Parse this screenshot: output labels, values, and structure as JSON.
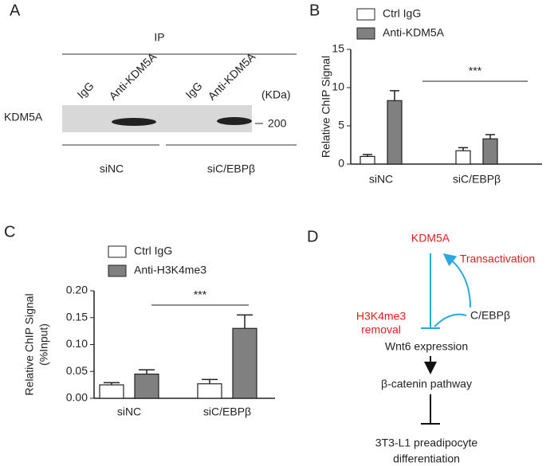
{
  "panel_labels": [
    "A",
    "B",
    "C",
    "D"
  ],
  "blot": {
    "header": "IP",
    "lanes": [
      "IgG",
      "Anti-KDM5A",
      "IgG",
      "Anti-KDM5A"
    ],
    "unit": "(KDa)",
    "protein": "KDM5A",
    "marker": "200",
    "groups": [
      "siNC",
      "siC/EBPβ"
    ]
  },
  "chart_data": [
    {
      "type": "bar",
      "y_label": "Relative ChIP Signal",
      "categories": [
        "siNC",
        "siC/EBPβ"
      ],
      "series": [
        {
          "name": "Ctrl IgG",
          "color": "#ffffff",
          "values": [
            1.0,
            1.75
          ],
          "errors": [
            0.25,
            0.4
          ]
        },
        {
          "name": "Anti-KDM5A",
          "color": "#808080",
          "values": [
            8.3,
            3.3
          ],
          "errors": [
            1.3,
            0.55
          ]
        }
      ],
      "ylim": [
        0,
        15
      ],
      "yticks": [
        0,
        5,
        10,
        15
      ],
      "annotation": "***"
    },
    {
      "type": "bar",
      "y_label": [
        "Relative ChIP Signal",
        "(%Input)"
      ],
      "categories": [
        "siNC",
        "siC/EBPβ"
      ],
      "series": [
        {
          "name": "Ctrl IgG",
          "color": "#ffffff",
          "values": [
            0.025,
            0.027
          ],
          "errors": [
            0.004,
            0.008
          ]
        },
        {
          "name": "Anti-H3K4me3",
          "color": "#808080",
          "values": [
            0.045,
            0.13
          ],
          "errors": [
            0.008,
            0.025
          ]
        }
      ],
      "ylim": [
        0,
        0.2
      ],
      "yticks": [
        {
          "value": 0,
          "label": "0.00"
        },
        0.05,
        {
          "value": 0.1,
          "label": "0.10"
        },
        0.15,
        {
          "value": 0.2,
          "label": "0.20"
        }
      ],
      "annotation": "***"
    }
  ],
  "diagram": {
    "kdm5a": "KDM5A",
    "transactivation": "Transactivation",
    "removal": [
      "H3K4me3",
      "removal"
    ],
    "cebp": "C/EBPβ",
    "wnt6": "Wnt6 expression",
    "catenin": "β-catenin pathway",
    "outcome": [
      "3T3-L1 preadipocyte",
      "differentiation"
    ]
  }
}
